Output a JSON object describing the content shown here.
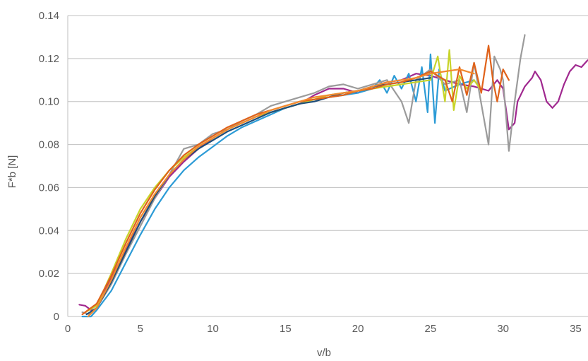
{
  "chart_data": {
    "type": "line",
    "title": "",
    "xlabel": "v/b",
    "ylabel": "F*b [N]",
    "xlim": [
      0,
      36
    ],
    "ylim": [
      0,
      0.14
    ],
    "xticks": [
      0,
      5,
      10,
      15,
      20,
      25,
      30,
      35
    ],
    "xtick_labels": [
      "0",
      "5",
      "10",
      "15",
      "20",
      "25",
      "30",
      "35"
    ],
    "yticks": [
      0,
      0.02,
      0.04,
      0.06,
      0.08,
      0.1,
      0.12,
      0.14
    ],
    "ytick_labels": [
      "0",
      "0.02",
      "0.04",
      "0.06",
      "0.08",
      "0.10",
      "0.12",
      "0.14"
    ],
    "grid": "horizontal",
    "legend": "none",
    "series": [
      {
        "color": "#a0288f",
        "points": [
          [
            0.8,
            0.0055
          ],
          [
            1.2,
            0.005
          ],
          [
            1.6,
            0.003
          ],
          [
            2,
            0.006
          ],
          [
            3,
            0.018
          ],
          [
            4,
            0.031
          ],
          [
            5,
            0.044
          ],
          [
            6,
            0.055
          ],
          [
            7,
            0.065
          ],
          [
            8,
            0.072
          ],
          [
            9,
            0.078
          ],
          [
            10,
            0.083
          ],
          [
            11,
            0.087
          ],
          [
            12,
            0.09
          ],
          [
            13,
            0.093
          ],
          [
            14,
            0.095
          ],
          [
            15,
            0.097
          ],
          [
            16,
            0.099
          ],
          [
            17,
            0.103
          ],
          [
            18,
            0.106
          ],
          [
            19,
            0.106
          ],
          [
            20,
            0.104
          ],
          [
            21,
            0.107
          ],
          [
            22,
            0.109
          ],
          [
            23,
            0.11
          ],
          [
            24,
            0.113
          ],
          [
            25,
            0.112
          ],
          [
            26,
            0.11
          ],
          [
            27,
            0.108
          ],
          [
            28,
            0.107
          ],
          [
            29,
            0.105
          ],
          [
            29.6,
            0.11
          ],
          [
            30,
            0.106
          ],
          [
            30.4,
            0.087
          ],
          [
            30.8,
            0.09
          ],
          [
            31,
            0.1
          ],
          [
            31.5,
            0.107
          ],
          [
            32,
            0.111
          ],
          [
            32.2,
            0.114
          ],
          [
            32.6,
            0.11
          ],
          [
            33,
            0.1
          ],
          [
            33.4,
            0.097
          ],
          [
            33.8,
            0.1
          ],
          [
            34.2,
            0.108
          ],
          [
            34.6,
            0.114
          ],
          [
            35,
            0.117
          ],
          [
            35.4,
            0.116
          ],
          [
            35.8,
            0.119
          ],
          [
            36.2,
            0.121
          ]
        ]
      },
      {
        "color": "#2c9bd6",
        "points": [
          [
            1,
            0
          ],
          [
            1.6,
            0
          ],
          [
            2,
            0.003
          ],
          [
            3,
            0.012
          ],
          [
            4,
            0.025
          ],
          [
            5,
            0.038
          ],
          [
            6,
            0.05
          ],
          [
            7,
            0.06
          ],
          [
            8,
            0.068
          ],
          [
            9,
            0.074
          ],
          [
            10,
            0.079
          ],
          [
            11,
            0.084
          ],
          [
            12,
            0.088
          ],
          [
            13,
            0.091
          ],
          [
            14,
            0.094
          ],
          [
            15,
            0.097
          ],
          [
            16,
            0.099
          ],
          [
            17,
            0.101
          ],
          [
            18,
            0.102
          ],
          [
            19,
            0.103
          ],
          [
            20,
            0.104
          ],
          [
            21,
            0.106
          ],
          [
            21.5,
            0.11
          ],
          [
            22,
            0.104
          ],
          [
            22.5,
            0.112
          ],
          [
            23,
            0.106
          ],
          [
            23.5,
            0.113
          ],
          [
            24,
            0.1
          ],
          [
            24.4,
            0.116
          ],
          [
            24.8,
            0.095
          ],
          [
            25,
            0.122
          ],
          [
            25.3,
            0.09
          ],
          [
            25.6,
            0.115
          ],
          [
            26,
            0.105
          ],
          [
            27,
            0.108
          ],
          [
            28,
            0.11
          ]
        ]
      },
      {
        "color": "#9b9b9b",
        "points": [
          [
            1,
            0.002
          ],
          [
            1.5,
            0.001
          ],
          [
            2,
            0.004
          ],
          [
            3,
            0.015
          ],
          [
            4,
            0.029
          ],
          [
            5,
            0.042
          ],
          [
            6,
            0.055
          ],
          [
            7,
            0.066
          ],
          [
            8,
            0.078
          ],
          [
            9,
            0.08
          ],
          [
            10,
            0.085
          ],
          [
            11,
            0.087
          ],
          [
            12,
            0.091
          ],
          [
            13,
            0.094
          ],
          [
            14,
            0.098
          ],
          [
            15,
            0.1
          ],
          [
            16,
            0.102
          ],
          [
            17,
            0.104
          ],
          [
            18,
            0.107
          ],
          [
            19,
            0.108
          ],
          [
            20,
            0.106
          ],
          [
            21,
            0.108
          ],
          [
            22,
            0.11
          ],
          [
            23,
            0.1
          ],
          [
            23.5,
            0.09
          ],
          [
            24,
            0.11
          ],
          [
            25,
            0.115
          ],
          [
            26,
            0.108
          ],
          [
            27,
            0.11
          ],
          [
            27.5,
            0.095
          ],
          [
            28,
            0.118
          ],
          [
            28.5,
            0.099
          ],
          [
            29,
            0.08
          ],
          [
            29.4,
            0.121
          ],
          [
            29.8,
            0.115
          ],
          [
            30,
            0.11
          ],
          [
            30.4,
            0.077
          ],
          [
            30.8,
            0.1
          ],
          [
            31.2,
            0.12
          ],
          [
            31.5,
            0.131
          ]
        ]
      },
      {
        "color": "#c8d42a",
        "points": [
          [
            1.2,
            0.002
          ],
          [
            2,
            0.005
          ],
          [
            3,
            0.02
          ],
          [
            4,
            0.036
          ],
          [
            5,
            0.05
          ],
          [
            6,
            0.06
          ],
          [
            7,
            0.068
          ],
          [
            8,
            0.074
          ],
          [
            9,
            0.079
          ],
          [
            10,
            0.083
          ],
          [
            11,
            0.087
          ],
          [
            12,
            0.09
          ],
          [
            13,
            0.093
          ],
          [
            14,
            0.095
          ],
          [
            15,
            0.097
          ],
          [
            16,
            0.099
          ],
          [
            17,
            0.101
          ],
          [
            18,
            0.103
          ],
          [
            19,
            0.104
          ],
          [
            20,
            0.105
          ],
          [
            21,
            0.106
          ],
          [
            22,
            0.107
          ],
          [
            23,
            0.108
          ],
          [
            24,
            0.109
          ],
          [
            25,
            0.11
          ],
          [
            25.5,
            0.121
          ],
          [
            26,
            0.1
          ],
          [
            26.3,
            0.124
          ],
          [
            26.6,
            0.096
          ],
          [
            27,
            0.112
          ],
          [
            27.5,
            0.106
          ],
          [
            28,
            0.11
          ],
          [
            28.5,
            0.105
          ]
        ]
      },
      {
        "color": "#1f4e79",
        "points": [
          [
            1.3,
            0.001
          ],
          [
            2,
            0.004
          ],
          [
            3,
            0.016
          ],
          [
            4,
            0.03
          ],
          [
            5,
            0.044
          ],
          [
            6,
            0.056
          ],
          [
            7,
            0.066
          ],
          [
            8,
            0.073
          ],
          [
            9,
            0.078
          ],
          [
            10,
            0.082
          ],
          [
            11,
            0.086
          ],
          [
            12,
            0.089
          ],
          [
            13,
            0.092
          ],
          [
            14,
            0.095
          ],
          [
            15,
            0.097
          ],
          [
            16,
            0.099
          ],
          [
            17,
            0.1
          ],
          [
            18,
            0.102
          ],
          [
            19,
            0.104
          ],
          [
            20,
            0.105
          ],
          [
            21,
            0.107
          ],
          [
            22,
            0.108
          ],
          [
            23,
            0.109
          ],
          [
            24,
            0.11
          ],
          [
            25,
            0.111
          ]
        ]
      },
      {
        "color": "#e0621a",
        "points": [
          [
            1,
            0.001
          ],
          [
            2,
            0.006
          ],
          [
            3,
            0.019
          ],
          [
            4,
            0.034
          ],
          [
            5,
            0.048
          ],
          [
            6,
            0.059
          ],
          [
            7,
            0.068
          ],
          [
            8,
            0.075
          ],
          [
            9,
            0.08
          ],
          [
            10,
            0.084
          ],
          [
            11,
            0.088
          ],
          [
            12,
            0.091
          ],
          [
            13,
            0.094
          ],
          [
            14,
            0.096
          ],
          [
            15,
            0.098
          ],
          [
            16,
            0.1
          ],
          [
            17,
            0.101
          ],
          [
            18,
            0.102
          ],
          [
            19,
            0.103
          ],
          [
            20,
            0.105
          ],
          [
            21,
            0.106
          ],
          [
            22,
            0.108
          ],
          [
            23,
            0.109
          ],
          [
            24,
            0.111
          ],
          [
            25,
            0.114
          ],
          [
            26,
            0.11
          ],
          [
            26.5,
            0.1
          ],
          [
            27,
            0.116
          ],
          [
            27.5,
            0.103
          ],
          [
            28,
            0.118
          ],
          [
            28.5,
            0.104
          ],
          [
            29,
            0.126
          ],
          [
            29.3,
            0.11
          ],
          [
            29.6,
            0.1
          ],
          [
            30,
            0.115
          ],
          [
            30.4,
            0.11
          ]
        ]
      },
      {
        "color": "#f28a2e",
        "points": [
          [
            1.4,
            0
          ],
          [
            2,
            0.004
          ],
          [
            3,
            0.017
          ],
          [
            4,
            0.032
          ],
          [
            5,
            0.046
          ],
          [
            6,
            0.057
          ],
          [
            7,
            0.066
          ],
          [
            8,
            0.073
          ],
          [
            9,
            0.079
          ],
          [
            10,
            0.083
          ],
          [
            11,
            0.087
          ],
          [
            12,
            0.09
          ],
          [
            13,
            0.093
          ],
          [
            14,
            0.096
          ],
          [
            15,
            0.098
          ],
          [
            16,
            0.1
          ],
          [
            17,
            0.102
          ],
          [
            18,
            0.103
          ],
          [
            19,
            0.104
          ],
          [
            20,
            0.105
          ],
          [
            21,
            0.107
          ],
          [
            22,
            0.109
          ],
          [
            23,
            0.11
          ],
          [
            24,
            0.111
          ],
          [
            25,
            0.113
          ],
          [
            26,
            0.114
          ],
          [
            27,
            0.115
          ],
          [
            28,
            0.113
          ]
        ]
      }
    ]
  }
}
